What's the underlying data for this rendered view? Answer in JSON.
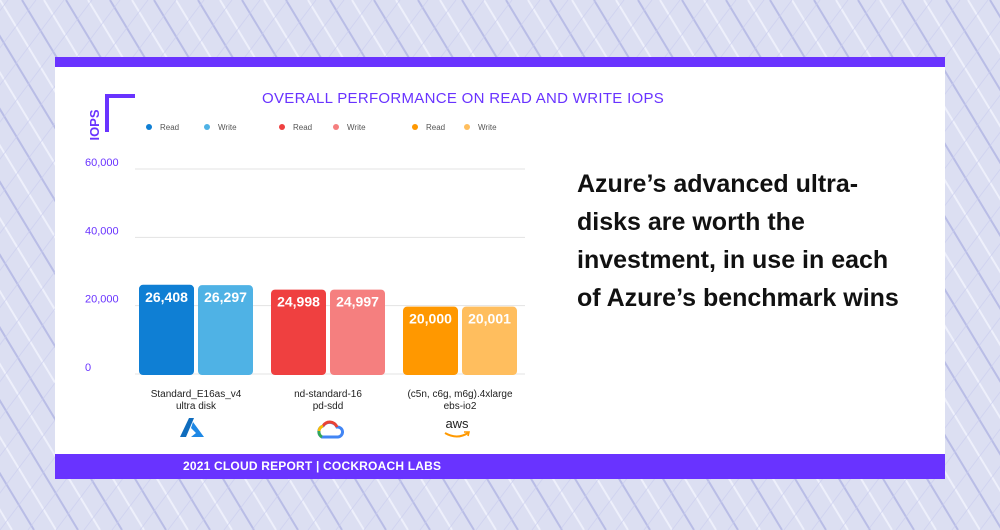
{
  "footer": "2021 CLOUD REPORT | COCKROACH LABS",
  "tagline": "Azure’s advanced ultra-disks are worth the investment, in use in each of Azure’s benchmark wins",
  "logos": {
    "aws_text": "aws"
  },
  "chart_data": {
    "type": "bar",
    "title": "OVERALL PERFORMANCE ON READ AND WRITE IOPS",
    "ylabel": "IOPS",
    "xlabel": "",
    "ylim": [
      0,
      60000
    ],
    "yticks": [
      0,
      20000,
      40000,
      60000
    ],
    "ytick_labels": [
      "0",
      "20,000",
      "40,000",
      "60,000"
    ],
    "grid": true,
    "legend_position": "top",
    "legend": [
      {
        "name": "Read",
        "color": "#0f7fd4"
      },
      {
        "name": "Write",
        "color": "#4fb2e5"
      },
      {
        "name": "Read",
        "color": "#ef4040"
      },
      {
        "name": "Write",
        "color": "#f57f7f"
      },
      {
        "name": "Read",
        "color": "#ff9800"
      },
      {
        "name": "Write",
        "color": "#ffbe5e"
      }
    ],
    "groups": [
      {
        "label_lines": [
          "Standard_E16as_v4",
          "ultra disk"
        ],
        "provider": "azure",
        "bars": [
          {
            "name": "Read",
            "value": 26408,
            "label": "26,408",
            "color": "#0f7fd4"
          },
          {
            "name": "Write",
            "value": 26297,
            "label": "26,297",
            "color": "#4fb2e5"
          }
        ]
      },
      {
        "label_lines": [
          "nd-standard-16",
          "pd-sdd"
        ],
        "provider": "gcp",
        "bars": [
          {
            "name": "Read",
            "value": 24998,
            "label": "24,998",
            "color": "#ef4040"
          },
          {
            "name": "Write",
            "value": 24997,
            "label": "24,997",
            "color": "#f57f7f"
          }
        ]
      },
      {
        "label_lines": [
          "(c5n, c6g, m6g).4xlarge",
          "ebs-io2"
        ],
        "provider": "aws",
        "bars": [
          {
            "name": "Read",
            "value": 20000,
            "label": "20,000",
            "color": "#ff9800"
          },
          {
            "name": "Write",
            "value": 20001,
            "label": "20,001",
            "color": "#ffbe5e"
          }
        ]
      }
    ]
  }
}
